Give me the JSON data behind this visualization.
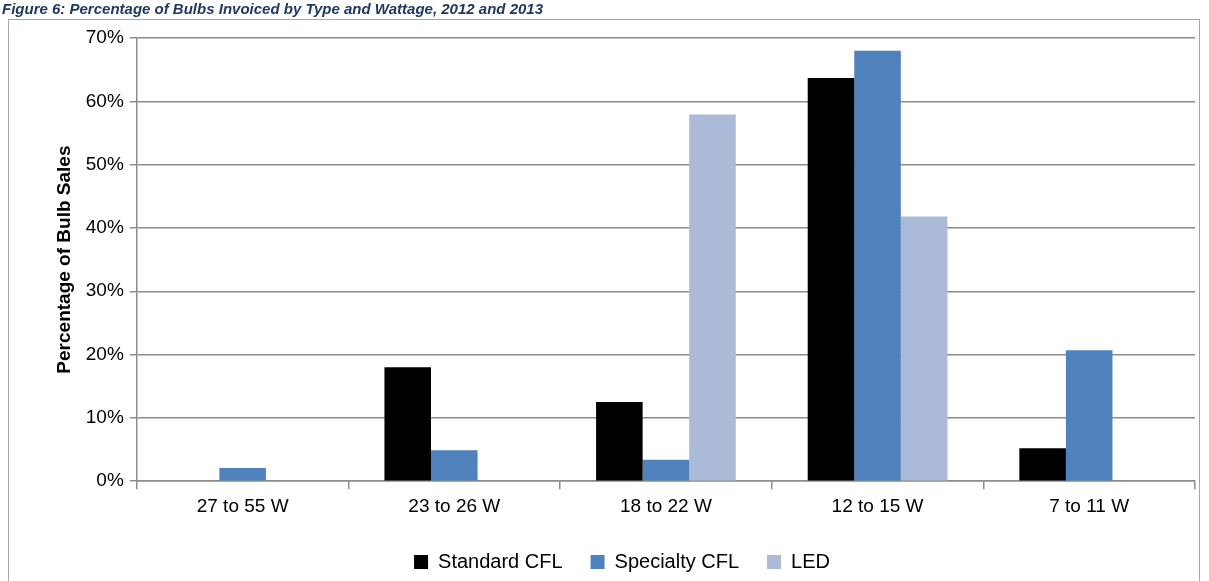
{
  "chart_data": {
    "type": "bar",
    "title": "Figure 6: Percentage of Bulbs Invoiced by Type and Wattage, 2012 and 2013",
    "ylabel": "Percentage of Bulb Sales",
    "categories": [
      "27 to 55 W",
      "23 to 26 W",
      "18 to 22 W",
      "12 to 15 W",
      "7 to 11 W"
    ],
    "series": [
      {
        "name": "Standard CFL",
        "color": "#000000",
        "values": [
          null,
          18,
          12.5,
          63.7,
          5.2
        ]
      },
      {
        "name": "Specialty CFL",
        "color": "#4f81bd",
        "values": [
          2.1,
          4.9,
          3.4,
          68,
          20.7
        ]
      },
      {
        "name": "LED",
        "color": "#aabad7",
        "values": [
          null,
          null,
          57.9,
          41.8,
          null
        ]
      }
    ],
    "ylim": [
      0,
      70
    ],
    "yticks": [
      {
        "value": 0,
        "label": "0%"
      },
      {
        "value": 10,
        "label": "10%"
      },
      {
        "value": 20,
        "label": "20%"
      },
      {
        "value": 30,
        "label": "30%"
      },
      {
        "value": 40,
        "label": "40%"
      },
      {
        "value": 50,
        "label": "50%"
      },
      {
        "value": 60,
        "label": "60%"
      },
      {
        "value": 70,
        "label": "70%"
      }
    ],
    "grid": "y",
    "legend": "bottom"
  }
}
